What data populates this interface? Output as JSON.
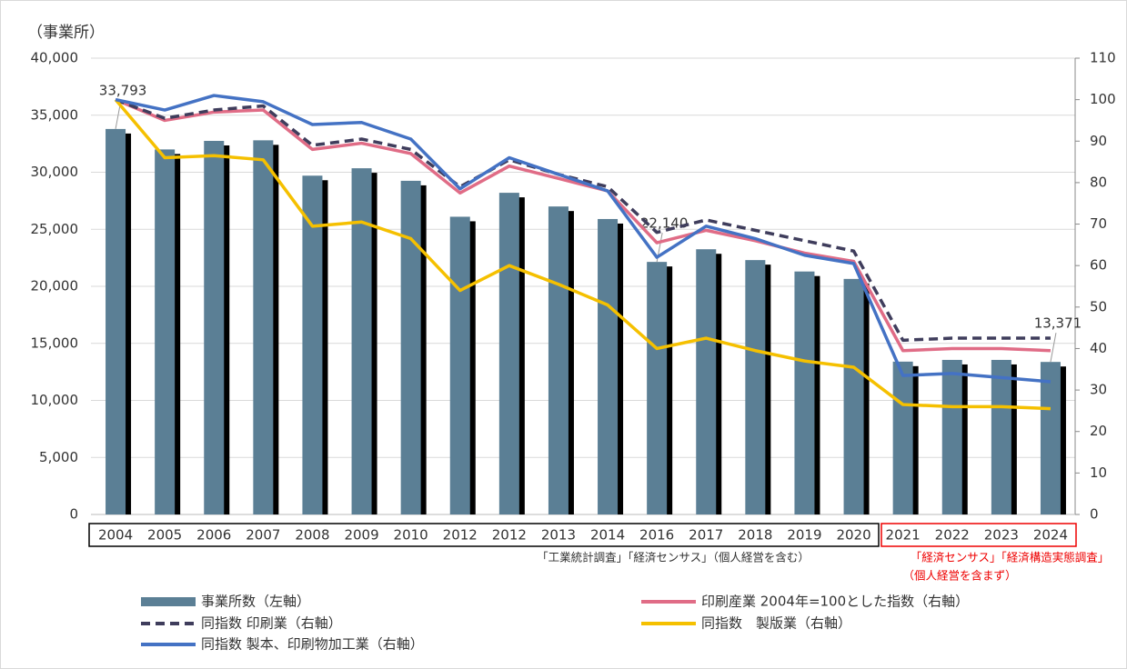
{
  "chart_data": {
    "type": "bar",
    "y_label": "（事業所）",
    "categories": [
      "2004",
      "2005",
      "2006",
      "2007",
      "2008",
      "2009",
      "2010",
      "2012",
      "2012",
      "2013",
      "2014",
      "2016",
      "2017",
      "2018",
      "2019",
      "2020",
      "2021",
      "2022",
      "2023",
      "2024"
    ],
    "series": [
      {
        "name": "事業所数（左軸）",
        "type": "bar",
        "color": "#5b7f95",
        "axis": "y",
        "values": [
          33793,
          32000,
          32750,
          32800,
          29700,
          30350,
          29250,
          26100,
          28200,
          27000,
          25900,
          22140,
          23250,
          22300,
          21300,
          20650,
          13400,
          13550,
          13550,
          13371
        ],
        "value_labels": [
          "33,793",
          null,
          null,
          null,
          null,
          null,
          null,
          null,
          null,
          null,
          null,
          "22,140",
          null,
          null,
          null,
          null,
          null,
          null,
          null,
          "13,371"
        ]
      },
      {
        "name": "印刷産業 2004年=100とした指数（右軸）",
        "type": "line",
        "color": "#e06c86",
        "axis": "y2",
        "values": [
          100,
          95,
          97,
          97.5,
          88,
          89.5,
          87,
          77.5,
          84,
          81,
          78,
          65.5,
          68.5,
          66,
          63,
          61,
          39.5,
          40,
          40,
          39.5
        ]
      },
      {
        "name": "同指数 印刷業（右軸）",
        "type": "line",
        "color": "#3f3d5c",
        "axis": "y2",
        "dashed": true,
        "values": [
          100,
          95.5,
          97.5,
          98.5,
          89,
          90.5,
          88,
          79,
          85.5,
          82,
          79,
          68,
          71,
          68.5,
          66,
          63.5,
          42,
          42.5,
          42.5,
          42.5
        ]
      },
      {
        "name": "同指数　製版業（右軸）",
        "type": "line",
        "color": "#f5c000",
        "axis": "y2",
        "values": [
          100,
          86,
          86.5,
          85.5,
          69.5,
          70.5,
          66.5,
          54,
          60,
          55.5,
          50.5,
          40,
          42.5,
          39.5,
          37,
          35.5,
          26.5,
          26,
          26,
          25.5
        ]
      },
      {
        "name": "同指数 製本、印刷物加工業（右軸）",
        "type": "line",
        "color": "#4472c4",
        "axis": "y2",
        "values": [
          100,
          97.5,
          101,
          99.5,
          94,
          94.5,
          90.5,
          78.5,
          86,
          82,
          78,
          62,
          69.5,
          66.5,
          62.5,
          60.5,
          33.5,
          34,
          33,
          32
        ]
      }
    ],
    "ylim": [
      0,
      40000
    ],
    "yticks": [
      0,
      {
        "value": 5000,
        "label": "5,000"
      },
      {
        "value": 10000,
        "label": "10,000"
      },
      {
        "value": 15000,
        "label": "15,000"
      },
      {
        "value": 20000,
        "label": "20,000"
      },
      {
        "value": 25000,
        "label": "25,000"
      },
      {
        "value": 30000,
        "label": "30,000"
      },
      {
        "value": 35000,
        "label": "35,000"
      },
      {
        "value": 40000,
        "label": "40,000"
      }
    ],
    "y2lim": [
      0,
      110
    ],
    "y2ticks": [
      0,
      10,
      20,
      30,
      40,
      50,
      60,
      70,
      80,
      90,
      100,
      110
    ],
    "grid": true,
    "annotations": [
      "「工業統計調査」「経済センサス」（個人経営を含む）",
      "「経済センサス」「経済構造実態調査」",
      "（個人経営を含まず）"
    ]
  }
}
